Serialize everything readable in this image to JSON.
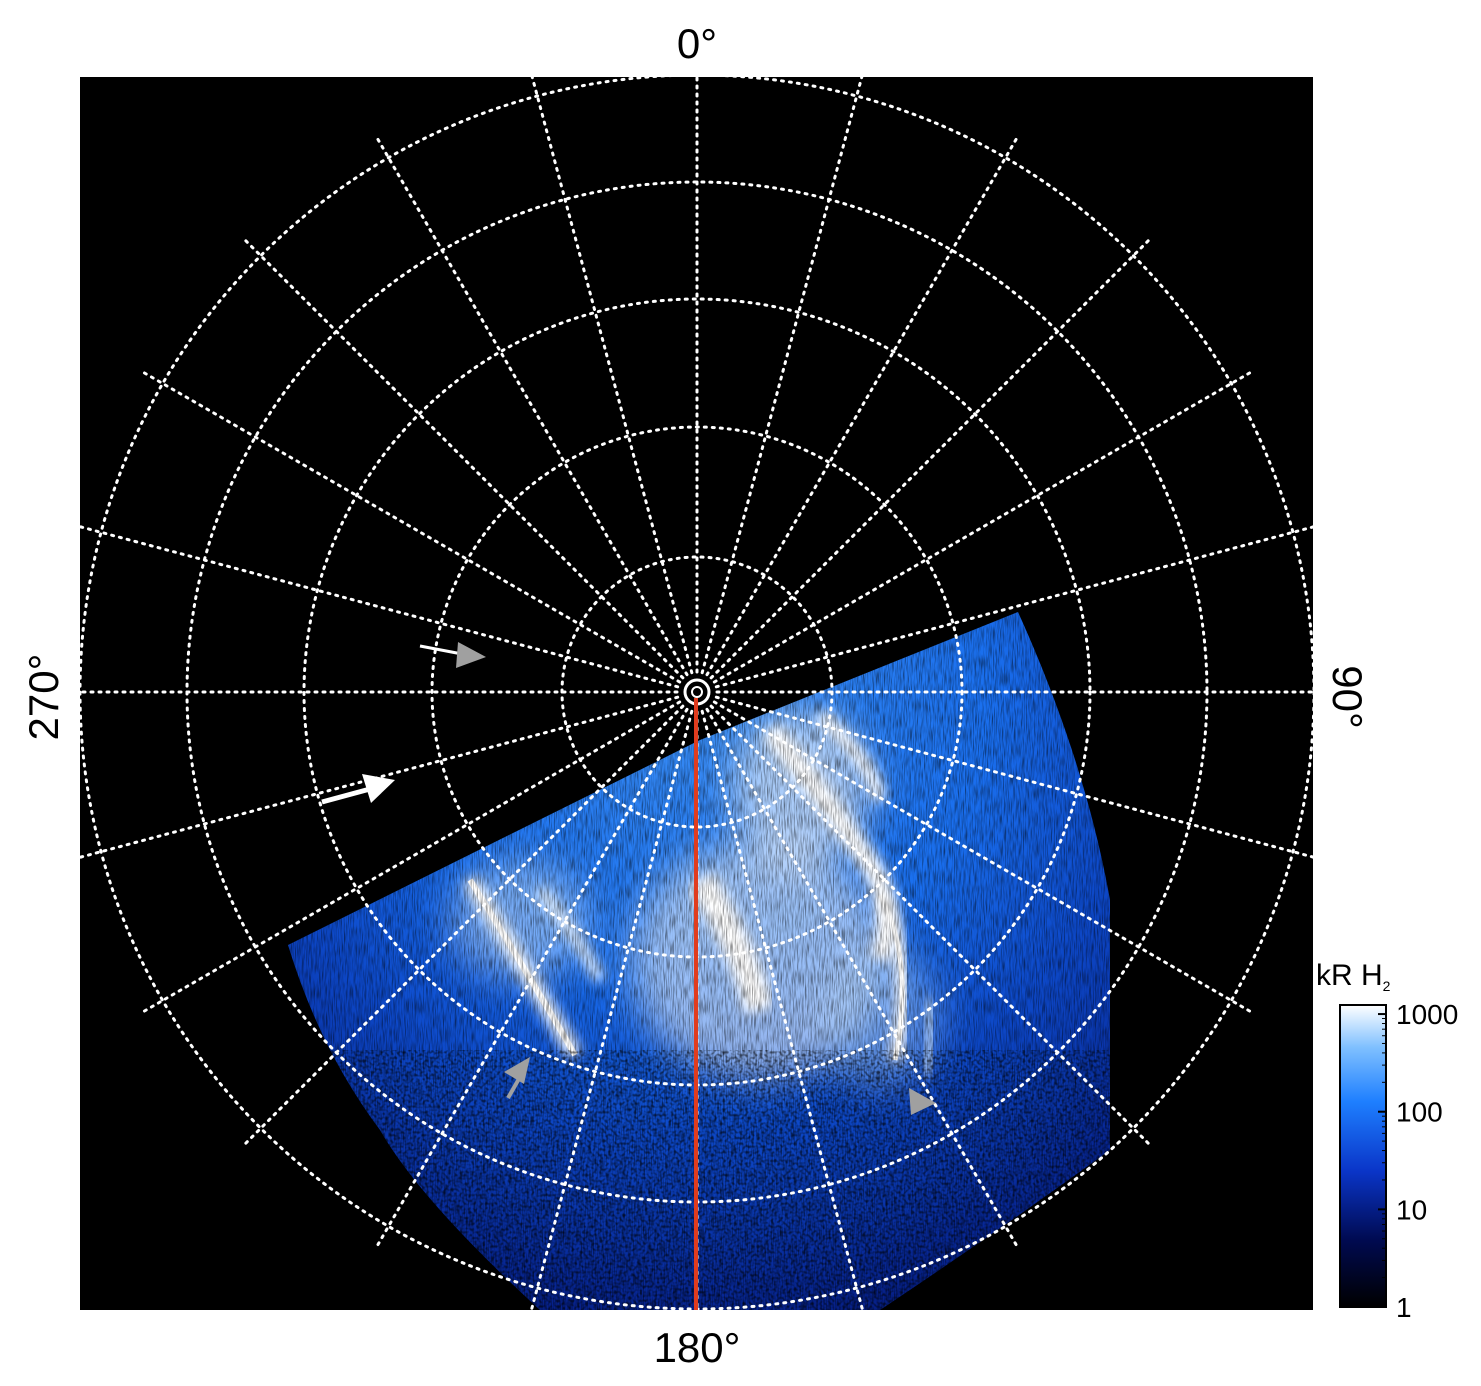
{
  "figure": {
    "label_top": "0°",
    "label_bottom": "180°",
    "label_left": "270°",
    "label_right": "90°"
  },
  "colorbar": {
    "title_main": "kR H",
    "title_sub": "2",
    "ticks": [
      "1000",
      "100",
      "10",
      "1"
    ],
    "scale": "log",
    "range": [
      1,
      1000
    ]
  },
  "colors": {
    "background": "#000000",
    "grid": "#ffffff",
    "meridian_line": "#e03c1e",
    "emission_low": "#0a1f9a",
    "emission_mid": "#1e7fff",
    "emission_high": "#ffffff",
    "arrow_white": "#ffffff",
    "arrow_gray": "#a0a0a0"
  },
  "annotations": {
    "arrows": [
      {
        "name": "white-arrow-small",
        "color": "white"
      },
      {
        "name": "white-arrow-large",
        "color": "white"
      },
      {
        "name": "gray-arrow-left",
        "color": "gray"
      },
      {
        "name": "gray-arrow-right",
        "color": "gray"
      }
    ]
  }
}
